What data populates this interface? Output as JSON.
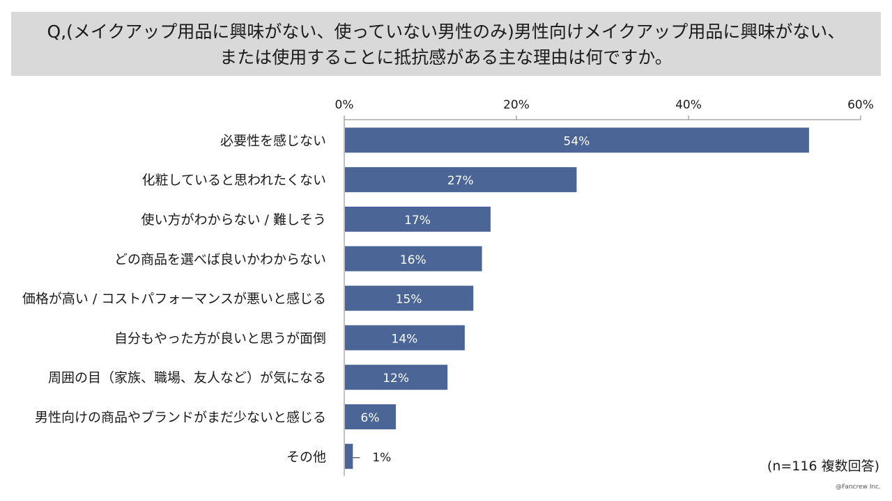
{
  "question": {
    "line1": "Q,(メイクアップ用品に興味がない、使っていない男性のみ)男性向けメイクアップ用品に興味がない、",
    "line2": "または使用することに抵抗感がある主な理由は何ですか。"
  },
  "chart_data": {
    "type": "bar",
    "orientation": "horizontal",
    "title": "",
    "xlabel": "",
    "ylabel": "",
    "xlim": [
      0,
      60
    ],
    "ticks": [
      0,
      20,
      40,
      60
    ],
    "tick_labels": [
      "0%",
      "20%",
      "40%",
      "60%"
    ],
    "categories": [
      "必要性を感じない",
      "化粧していると思われたくない",
      "使い方がわからない / 難しそう",
      "どの商品を選べば良いかわからない",
      "価格が高い / コストパフォーマンスが悪いと感じる",
      "自分もやった方が良いと思うが面倒",
      "周囲の目（家族、職場、友人など）が気になる",
      "男性向けの商品やブランドがまだ少ないと感じる",
      "その他"
    ],
    "values": [
      54,
      27,
      17,
      16,
      15,
      14,
      12,
      6,
      1
    ],
    "value_labels": [
      "54%",
      "27%",
      "17%",
      "16%",
      "15%",
      "14%",
      "12%",
      "6%",
      "1%"
    ],
    "bar_color": "#4a6596",
    "grid": false
  },
  "footnote": "(n=116 複数回答)",
  "credit": "@Fancrew Inc."
}
